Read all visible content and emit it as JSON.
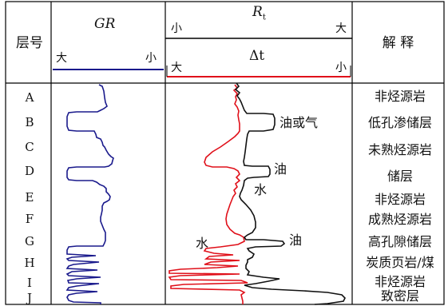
{
  "header": {
    "layer_col": "层号",
    "gr_title": "GR",
    "gr_left": "大",
    "gr_right": "小",
    "rt_title": "R",
    "rt_sub": "t",
    "rt_left": "小",
    "rt_right": "大",
    "dt_title": "Δt",
    "dt_left": "大",
    "dt_right": "小",
    "interp_col": "解 释"
  },
  "layers": [
    "A",
    "B",
    "C",
    "D",
    "E",
    "F",
    "G",
    "H",
    "I",
    "J"
  ],
  "interpretations": [
    "非烃源岩",
    "低孔渗储层",
    "未熟烃源岩",
    "储层",
    "非烃源岩",
    "成熟烃源岩",
    "高孔隙储层",
    "炭质页岩/煤",
    "非烃源岩",
    "致密层"
  ],
  "annotations": {
    "oil_or_gas": "油或气",
    "oil_1": "油",
    "water_1": "水",
    "water_2": "水",
    "oil_2": "油"
  },
  "colors": {
    "gr_curve": "#1a1a8c",
    "dt_curve": "#e0101a",
    "rt_curve": "#111111",
    "frame": "#000000"
  }
}
